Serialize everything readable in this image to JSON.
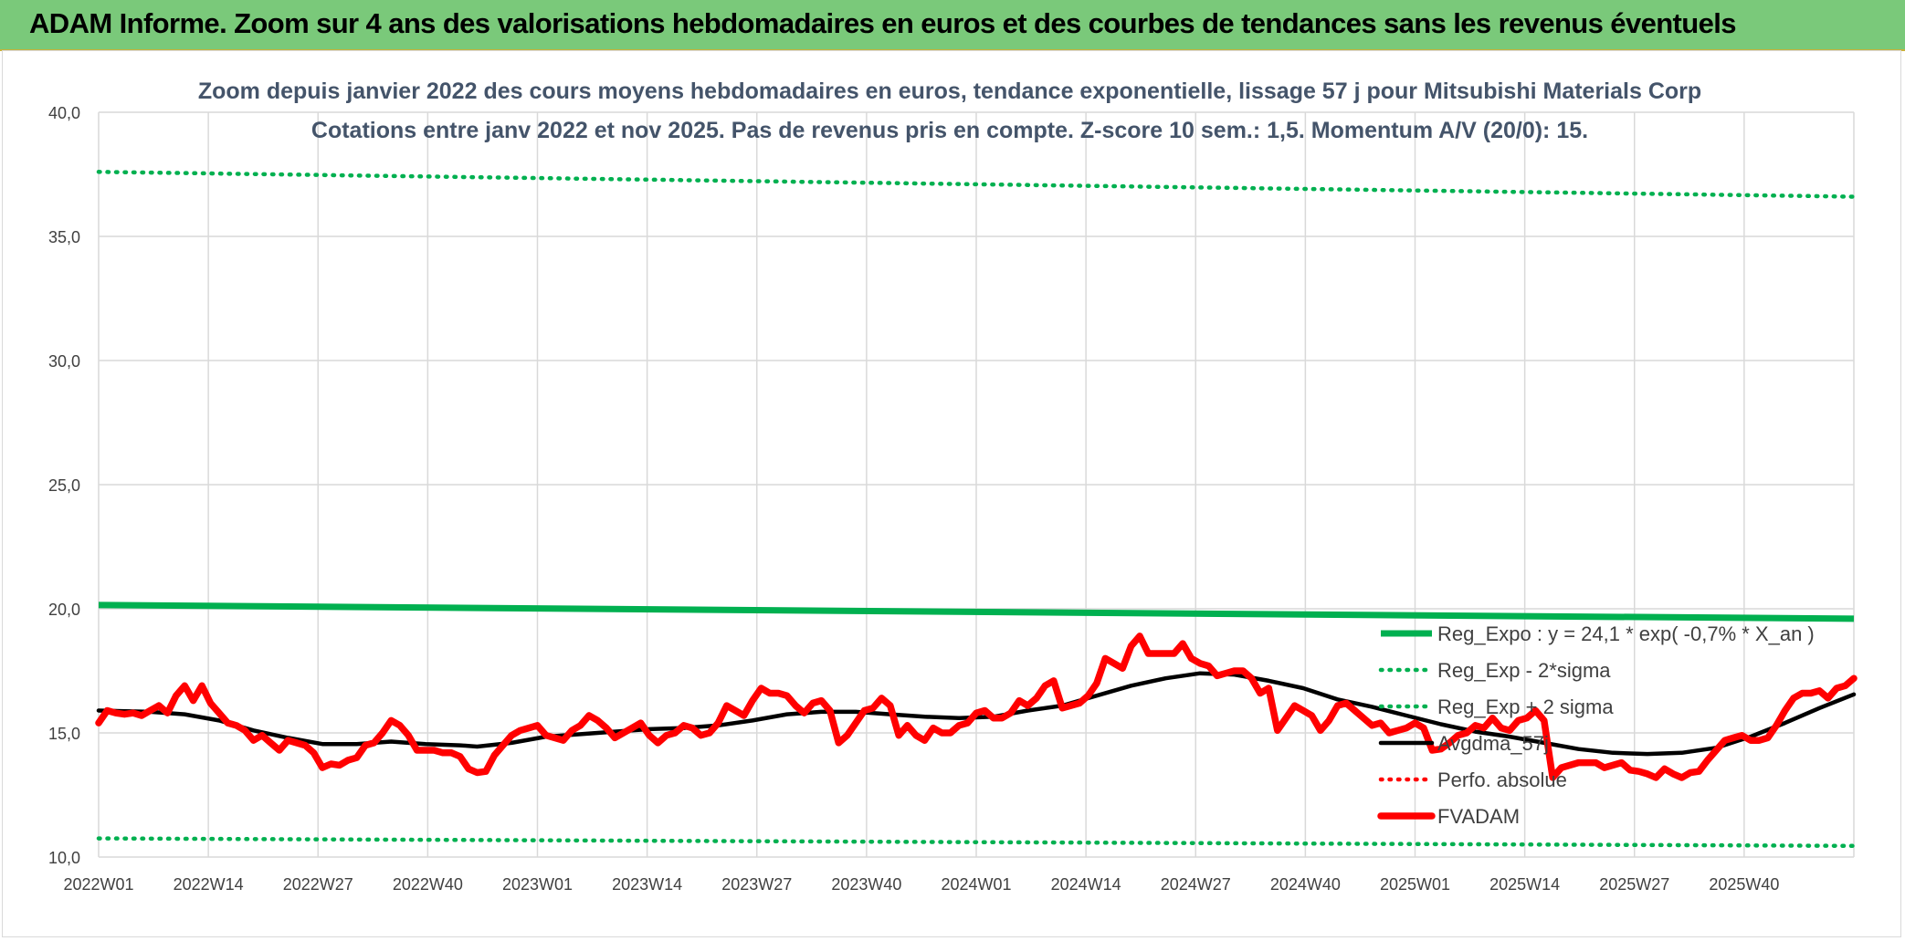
{
  "banner": {
    "title": "ADAM Informe. Zoom sur 4 ans des valorisations hebdomadaires en euros et des courbes de tendances sans les revenus éventuels"
  },
  "chart_data": {
    "type": "line",
    "title": "Zoom depuis janvier 2022 des cours moyens hebdomadaires en euros, tendance exponentielle, lissage 57 j pour Mitsubishi Materials Corp",
    "subtitle": "Cotations entre janv 2022 et nov 2025. Pas de revenus pris en compte. Z-score 10 sem.: 1,5. Momentum A/V (20/0): 15.",
    "xlabel": "",
    "ylabel": "",
    "ylim": [
      10,
      40
    ],
    "yticks": [
      10,
      15,
      20,
      25,
      30,
      35,
      40
    ],
    "ytick_labels": [
      "10,0",
      "15,0",
      "20,0",
      "25,0",
      "30,0",
      "35,0",
      "40,0"
    ],
    "x_tick_labels": [
      "2022W01",
      "2022W14",
      "2022W27",
      "2022W40",
      "2023W01",
      "2023W14",
      "2023W27",
      "2023W40",
      "2024W01",
      "2024W14",
      "2024W27",
      "2024W40",
      "2025W01",
      "2025W14",
      "2025W27",
      "2025W40"
    ],
    "grid": true,
    "legend_position": "bottom-right",
    "n_weeks": 205,
    "series": [
      {
        "name": "Reg_Expo : y = 24,1 * exp( -0,7% *  X_an )",
        "color": "#00b050",
        "style": "solid",
        "points": [
          [
            0,
            20.15
          ],
          [
            204,
            19.6
          ]
        ]
      },
      {
        "name": "Reg_Exp - 2*sigma",
        "color": "#00b050",
        "style": "dotted",
        "points": [
          [
            0,
            10.75
          ],
          [
            204,
            10.45
          ]
        ]
      },
      {
        "name": "Reg_Exp + 2 sigma",
        "color": "#00b050",
        "style": "dotted",
        "points": [
          [
            0,
            37.6
          ],
          [
            204,
            36.6
          ]
        ]
      },
      {
        "name": "Avgdma_57j",
        "color": "#000000",
        "style": "solid",
        "points": [
          [
            0,
            15.9
          ],
          [
            6,
            15.85
          ],
          [
            10,
            15.75
          ],
          [
            14,
            15.5
          ],
          [
            18,
            15.1
          ],
          [
            22,
            14.8
          ],
          [
            26,
            14.55
          ],
          [
            30,
            14.55
          ],
          [
            34,
            14.65
          ],
          [
            38,
            14.55
          ],
          [
            42,
            14.5
          ],
          [
            44,
            14.45
          ],
          [
            48,
            14.6
          ],
          [
            52,
            14.85
          ],
          [
            56,
            14.95
          ],
          [
            60,
            15.05
          ],
          [
            64,
            15.15
          ],
          [
            68,
            15.2
          ],
          [
            72,
            15.3
          ],
          [
            76,
            15.5
          ],
          [
            80,
            15.75
          ],
          [
            84,
            15.85
          ],
          [
            88,
            15.85
          ],
          [
            92,
            15.75
          ],
          [
            96,
            15.65
          ],
          [
            100,
            15.6
          ],
          [
            104,
            15.65
          ],
          [
            108,
            15.9
          ],
          [
            112,
            16.1
          ],
          [
            116,
            16.5
          ],
          [
            120,
            16.9
          ],
          [
            124,
            17.2
          ],
          [
            128,
            17.4
          ],
          [
            132,
            17.35
          ],
          [
            136,
            17.1
          ],
          [
            140,
            16.8
          ],
          [
            144,
            16.35
          ],
          [
            148,
            16.05
          ],
          [
            152,
            15.7
          ],
          [
            156,
            15.35
          ],
          [
            160,
            15.05
          ],
          [
            164,
            14.85
          ],
          [
            168,
            14.6
          ],
          [
            172,
            14.35
          ],
          [
            176,
            14.2
          ],
          [
            180,
            14.15
          ],
          [
            184,
            14.2
          ],
          [
            188,
            14.4
          ],
          [
            192,
            14.85
          ],
          [
            196,
            15.4
          ],
          [
            200,
            16.0
          ],
          [
            204,
            16.55
          ]
        ]
      },
      {
        "name": "Perfo. absolue",
        "color": "#ff0000",
        "style": "dotted",
        "points": []
      },
      {
        "name": "FVADAM",
        "color": "#ff0000",
        "style": "solid",
        "points": [
          [
            0,
            15.4
          ],
          [
            1,
            15.9
          ],
          [
            2,
            15.8
          ],
          [
            3,
            15.75
          ],
          [
            4,
            15.8
          ],
          [
            5,
            15.7
          ],
          [
            6,
            15.9
          ],
          [
            7,
            16.1
          ],
          [
            8,
            15.8
          ],
          [
            9,
            16.5
          ],
          [
            10,
            16.9
          ],
          [
            11,
            16.3
          ],
          [
            12,
            16.9
          ],
          [
            13,
            16.2
          ],
          [
            14,
            15.8
          ],
          [
            15,
            15.4
          ],
          [
            16,
            15.3
          ],
          [
            17,
            15.1
          ],
          [
            18,
            14.7
          ],
          [
            19,
            14.9
          ],
          [
            20,
            14.6
          ],
          [
            21,
            14.3
          ],
          [
            22,
            14.7
          ],
          [
            23,
            14.6
          ],
          [
            24,
            14.5
          ],
          [
            25,
            14.2
          ],
          [
            26,
            13.6
          ],
          [
            27,
            13.75
          ],
          [
            28,
            13.7
          ],
          [
            29,
            13.9
          ],
          [
            30,
            14.0
          ],
          [
            31,
            14.5
          ],
          [
            32,
            14.6
          ],
          [
            33,
            15.0
          ],
          [
            34,
            15.5
          ],
          [
            35,
            15.3
          ],
          [
            36,
            14.9
          ],
          [
            37,
            14.3
          ],
          [
            38,
            14.3
          ],
          [
            39,
            14.3
          ],
          [
            40,
            14.2
          ],
          [
            41,
            14.2
          ],
          [
            42,
            14.05
          ],
          [
            43,
            13.55
          ],
          [
            44,
            13.4
          ],
          [
            45,
            13.45
          ],
          [
            46,
            14.1
          ],
          [
            47,
            14.5
          ],
          [
            48,
            14.9
          ],
          [
            49,
            15.1
          ],
          [
            50,
            15.2
          ],
          [
            51,
            15.3
          ],
          [
            52,
            14.9
          ],
          [
            53,
            14.8
          ],
          [
            54,
            14.7
          ],
          [
            55,
            15.1
          ],
          [
            56,
            15.3
          ],
          [
            57,
            15.7
          ],
          [
            58,
            15.5
          ],
          [
            59,
            15.2
          ],
          [
            60,
            14.8
          ],
          [
            61,
            15.0
          ],
          [
            62,
            15.2
          ],
          [
            63,
            15.4
          ],
          [
            64,
            14.9
          ],
          [
            65,
            14.6
          ],
          [
            66,
            14.9
          ],
          [
            67,
            15.0
          ],
          [
            68,
            15.3
          ],
          [
            69,
            15.2
          ],
          [
            70,
            14.9
          ],
          [
            71,
            15.0
          ],
          [
            72,
            15.4
          ],
          [
            73,
            16.1
          ],
          [
            74,
            15.9
          ],
          [
            75,
            15.7
          ],
          [
            76,
            16.3
          ],
          [
            77,
            16.8
          ],
          [
            78,
            16.6
          ],
          [
            79,
            16.6
          ],
          [
            80,
            16.5
          ],
          [
            81,
            16.1
          ],
          [
            82,
            15.8
          ],
          [
            83,
            16.2
          ],
          [
            84,
            16.3
          ],
          [
            85,
            15.9
          ],
          [
            86,
            14.6
          ],
          [
            87,
            14.9
          ],
          [
            88,
            15.4
          ],
          [
            89,
            15.9
          ],
          [
            90,
            16.0
          ],
          [
            91,
            16.4
          ],
          [
            92,
            16.1
          ],
          [
            93,
            14.9
          ],
          [
            94,
            15.3
          ],
          [
            95,
            14.9
          ],
          [
            96,
            14.7
          ],
          [
            97,
            15.2
          ],
          [
            98,
            15.0
          ],
          [
            99,
            15.0
          ],
          [
            100,
            15.3
          ],
          [
            101,
            15.4
          ],
          [
            102,
            15.8
          ],
          [
            103,
            15.9
          ],
          [
            104,
            15.6
          ],
          [
            105,
            15.6
          ],
          [
            106,
            15.8
          ],
          [
            107,
            16.3
          ],
          [
            108,
            16.1
          ],
          [
            109,
            16.4
          ],
          [
            110,
            16.9
          ],
          [
            111,
            17.1
          ],
          [
            112,
            16.0
          ],
          [
            113,
            16.1
          ],
          [
            114,
            16.2
          ],
          [
            115,
            16.5
          ],
          [
            116,
            17.0
          ],
          [
            117,
            18.0
          ],
          [
            118,
            17.8
          ],
          [
            119,
            17.6
          ],
          [
            120,
            18.5
          ],
          [
            121,
            18.9
          ],
          [
            122,
            18.2
          ],
          [
            123,
            18.2
          ],
          [
            124,
            18.2
          ],
          [
            125,
            18.2
          ],
          [
            126,
            18.6
          ],
          [
            127,
            18.0
          ],
          [
            128,
            17.8
          ],
          [
            129,
            17.7
          ],
          [
            130,
            17.3
          ],
          [
            131,
            17.4
          ],
          [
            132,
            17.5
          ],
          [
            133,
            17.5
          ],
          [
            134,
            17.2
          ],
          [
            135,
            16.6
          ],
          [
            136,
            16.8
          ],
          [
            137,
            15.1
          ],
          [
            138,
            15.6
          ],
          [
            139,
            16.1
          ],
          [
            140,
            15.9
          ],
          [
            141,
            15.7
          ],
          [
            142,
            15.1
          ],
          [
            143,
            15.5
          ],
          [
            144,
            16.1
          ],
          [
            145,
            16.2
          ],
          [
            146,
            15.9
          ],
          [
            147,
            15.6
          ],
          [
            148,
            15.3
          ],
          [
            149,
            15.4
          ],
          [
            150,
            15.0
          ],
          [
            151,
            15.1
          ],
          [
            152,
            15.2
          ],
          [
            153,
            15.4
          ],
          [
            154,
            15.2
          ],
          [
            155,
            14.3
          ],
          [
            156,
            14.35
          ],
          [
            157,
            14.6
          ],
          [
            158,
            14.9
          ],
          [
            159,
            15.0
          ],
          [
            160,
            15.3
          ],
          [
            161,
            15.2
          ],
          [
            162,
            15.6
          ],
          [
            163,
            15.2
          ],
          [
            164,
            15.1
          ],
          [
            165,
            15.5
          ],
          [
            166,
            15.6
          ],
          [
            167,
            15.9
          ],
          [
            168,
            15.5
          ],
          [
            169,
            13.2
          ],
          [
            170,
            13.6
          ],
          [
            171,
            13.7
          ],
          [
            172,
            13.8
          ],
          [
            173,
            13.8
          ],
          [
            174,
            13.8
          ],
          [
            175,
            13.6
          ],
          [
            176,
            13.7
          ],
          [
            177,
            13.8
          ],
          [
            178,
            13.5
          ],
          [
            179,
            13.45
          ],
          [
            180,
            13.35
          ],
          [
            181,
            13.2
          ],
          [
            182,
            13.55
          ],
          [
            183,
            13.35
          ],
          [
            184,
            13.2
          ],
          [
            185,
            13.4
          ],
          [
            186,
            13.45
          ],
          [
            187,
            13.9
          ],
          [
            188,
            14.3
          ],
          [
            189,
            14.7
          ],
          [
            190,
            14.8
          ],
          [
            191,
            14.9
          ],
          [
            192,
            14.7
          ],
          [
            193,
            14.7
          ],
          [
            194,
            14.8
          ],
          [
            195,
            15.3
          ],
          [
            196,
            15.9
          ],
          [
            197,
            16.4
          ],
          [
            198,
            16.6
          ],
          [
            199,
            16.6
          ],
          [
            200,
            16.7
          ],
          [
            201,
            16.4
          ],
          [
            202,
            16.8
          ],
          [
            203,
            16.9
          ],
          [
            204,
            17.2
          ]
        ]
      }
    ]
  }
}
